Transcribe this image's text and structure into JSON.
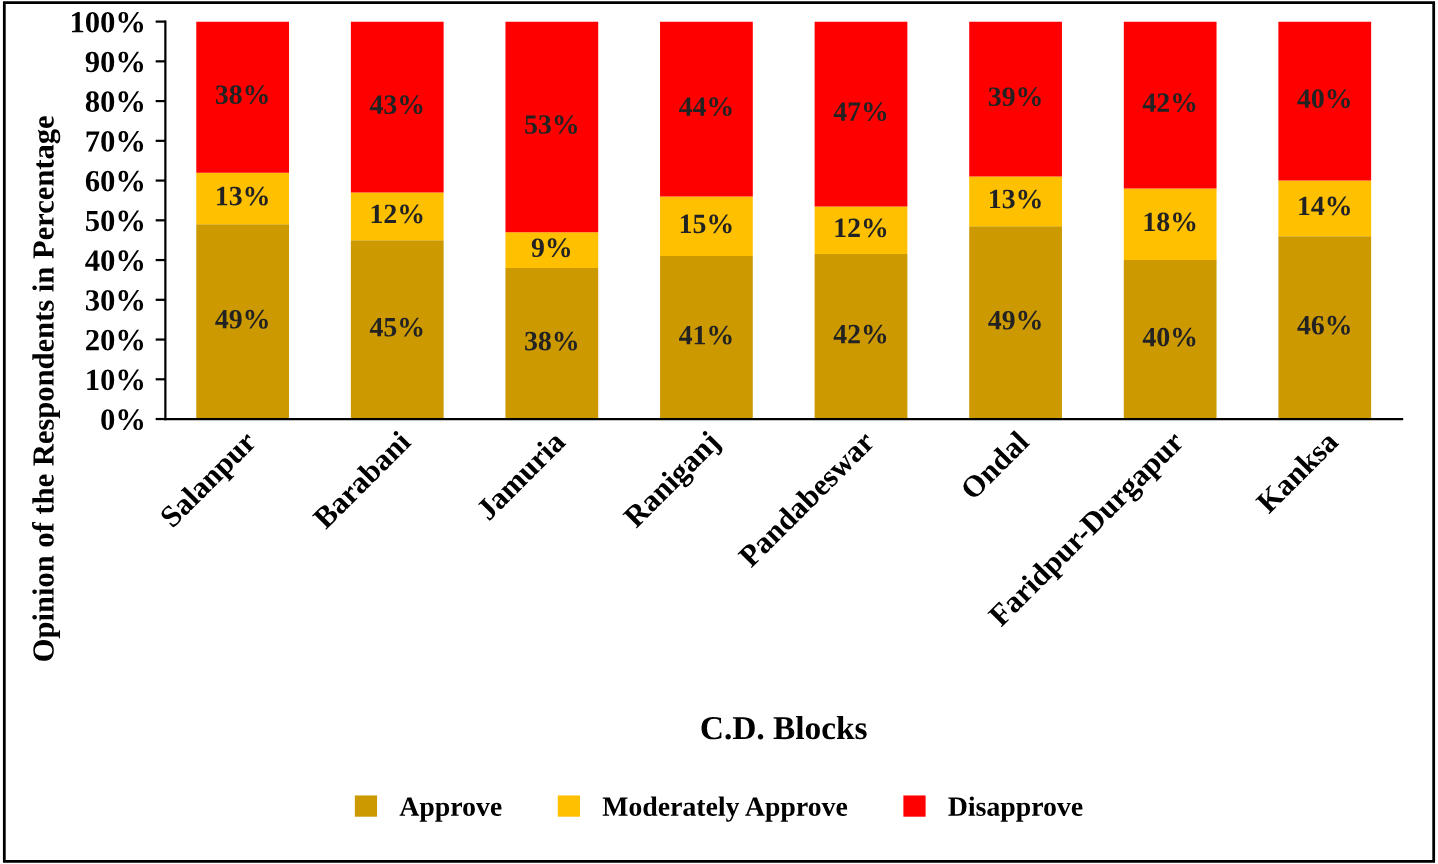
{
  "chart_data": {
    "type": "bar",
    "stacked": true,
    "xlabel": "C.D. Blocks",
    "ylabel": "Opinion of the Respondents in Percentage",
    "categories": [
      "Salanpur",
      "Barabani",
      "Jamuria",
      "Raniganj",
      "Pandabeswar",
      "Ondal",
      "Faridpur-Durgapur",
      "Kanksa"
    ],
    "series": [
      {
        "name": "Approve",
        "color": "#cc9900",
        "values": [
          49,
          45,
          38,
          41,
          41.5,
          48.5,
          40,
          46
        ],
        "value_labels": [
          "49%",
          "45%",
          "38%",
          "41%",
          "42%",
          "49%",
          "40%",
          "46%"
        ]
      },
      {
        "name": "Moderately Approve",
        "color": "#ffc000",
        "values": [
          13,
          12,
          9,
          15,
          12,
          12.5,
          18,
          14
        ],
        "value_labels": [
          "13%",
          "12%",
          "9%",
          "15%",
          "12%",
          "13%",
          "18%",
          "14%"
        ]
      },
      {
        "name": "Disapprove",
        "color": "#ff0000",
        "values": [
          38,
          43,
          53,
          44,
          46.5,
          39,
          42,
          40
        ],
        "value_labels": [
          "38%",
          "43%",
          "53%",
          "44%",
          "47%",
          "39%",
          "42%",
          "40%"
        ]
      }
    ],
    "ylim": [
      0,
      100
    ],
    "yticks": [
      {
        "value": 0,
        "label": "0%"
      },
      {
        "value": 10,
        "label": "10%"
      },
      {
        "value": 20,
        "label": "20%"
      },
      {
        "value": 30,
        "label": "30%"
      },
      {
        "value": 40,
        "label": "40%"
      },
      {
        "value": 50,
        "label": "50%"
      },
      {
        "value": 60,
        "label": "60%"
      },
      {
        "value": 70,
        "label": "70%"
      },
      {
        "value": 80,
        "label": "80%"
      },
      {
        "value": 90,
        "label": "90%"
      },
      {
        "value": 100,
        "label": "100%"
      }
    ],
    "legend": "bottom",
    "grid": false
  }
}
